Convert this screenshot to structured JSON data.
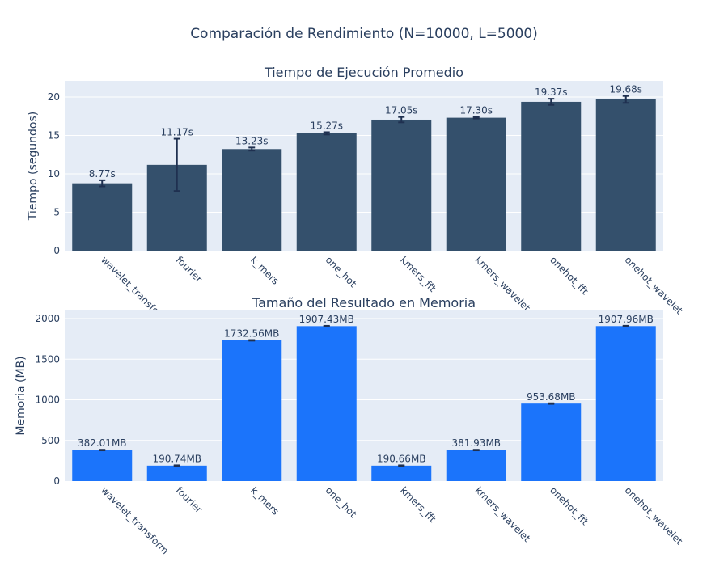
{
  "title": "Comparación de Rendimiento (N=10000, L=5000)",
  "chart_data": [
    {
      "type": "bar",
      "title": "Tiempo de Ejecución Promedio",
      "ylabel": "Tiempo (segundos)",
      "xlabel": "",
      "categories": [
        "wavelet_transform",
        "fourier",
        "k_mers",
        "one_hot",
        "kmers_fft",
        "kmers_wavelet",
        "onehot_fft",
        "onehot_wavelet"
      ],
      "values": [
        8.77,
        11.17,
        13.23,
        15.27,
        17.05,
        17.3,
        19.37,
        19.68
      ],
      "error": [
        0.4,
        3.4,
        0.2,
        0.15,
        0.35,
        0.1,
        0.4,
        0.45
      ],
      "data_labels": [
        "8.77s",
        "11.17s",
        "13.23s",
        "15.27s",
        "17.05s",
        "17.30s",
        "19.37s",
        "19.68s"
      ],
      "ylim": [
        0,
        22.1
      ],
      "yticks": [
        0,
        5,
        10,
        15,
        20
      ],
      "bar_color": "#34506c",
      "error_color": "#1f3050",
      "grid": true
    },
    {
      "type": "bar",
      "title": "Tamaño del Resultado en Memoria",
      "ylabel": "Memoria (MB)",
      "xlabel": "",
      "categories": [
        "wavelet_transform",
        "fourier",
        "k_mers",
        "one_hot",
        "kmers_fft",
        "kmers_wavelet",
        "onehot_fft",
        "onehot_wavelet"
      ],
      "values": [
        382.01,
        190.74,
        1732.56,
        1907.43,
        190.66,
        381.93,
        953.68,
        1907.96
      ],
      "error": [
        4,
        4,
        4,
        4,
        4,
        4,
        4,
        4
      ],
      "data_labels": [
        "382.01MB",
        "190.74MB",
        "1732.56MB",
        "1907.43MB",
        "190.66MB",
        "381.93MB",
        "953.68MB",
        "1907.96MB"
      ],
      "ylim": [
        0,
        2100
      ],
      "yticks": [
        0,
        500,
        1000,
        1500,
        2000
      ],
      "bar_color": "#1b74fb",
      "error_color": "#1f3050",
      "grid": true
    }
  ],
  "plot_bg": "#e5ecf6",
  "grid_color": "#ffffff"
}
